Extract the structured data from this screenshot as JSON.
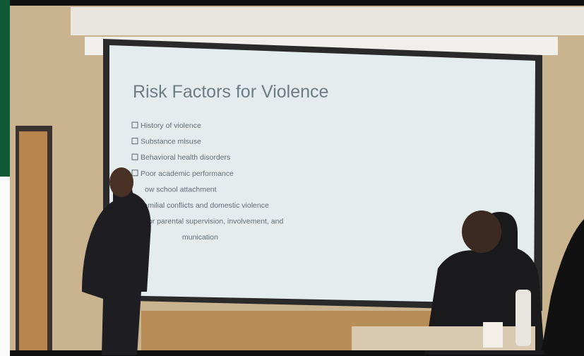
{
  "slide": {
    "title": "Risk Factors for Violence",
    "bullets": [
      "History of violence",
      "Substance misuse",
      "Behavioral health disorders",
      "Poor academic performance",
      "ow school attachment",
      "Familial conflicts and domestic violence",
      "Poor parental supervision, involvement, and",
      "munication"
    ]
  }
}
